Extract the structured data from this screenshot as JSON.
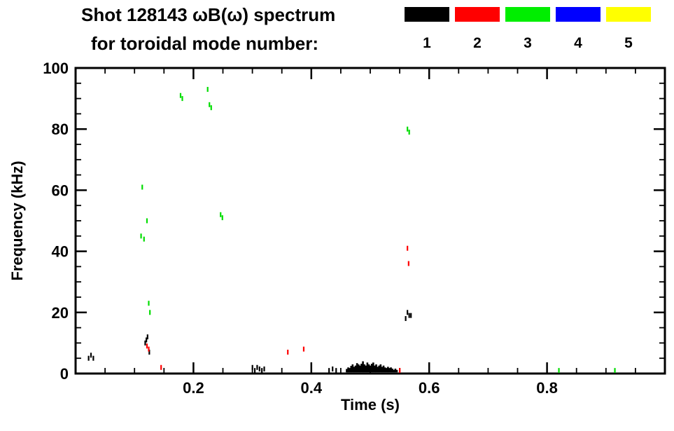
{
  "title": {
    "line1": "Shot 128143 ωB(ω) spectrum",
    "line2": "for toroidal mode number:"
  },
  "legend": {
    "modes": [
      {
        "label": "1",
        "color": "#000000"
      },
      {
        "label": "2",
        "color": "#ff0000"
      },
      {
        "label": "3",
        "color": "#00ee00"
      },
      {
        "label": "4",
        "color": "#0000ff"
      },
      {
        "label": "5",
        "color": "#ffff00"
      }
    ]
  },
  "chart_data": {
    "type": "scatter",
    "title": "Shot 128143 ωB(ω) spectrum for toroidal mode number: 1 2 3 4 5",
    "xlabel": "Time (s)",
    "ylabel": "Frequency (kHz)",
    "xlim": [
      0,
      1.0
    ],
    "ylim": [
      0,
      100
    ],
    "x_major_ticks": [
      0.2,
      0.4,
      0.6,
      0.8
    ],
    "x_minor_step": 0.05,
    "y_major_ticks": [
      0,
      20,
      40,
      60,
      80,
      100
    ],
    "y_minor_step": 5,
    "grid": false,
    "legend_position": "top-right",
    "series": [
      {
        "name": "n=1",
        "color": "#000000",
        "points": [
          [
            0.022,
            5
          ],
          [
            0.026,
            6
          ],
          [
            0.03,
            5
          ],
          [
            0.118,
            10
          ],
          [
            0.12,
            11
          ],
          [
            0.122,
            12
          ],
          [
            0.125,
            7
          ],
          [
            0.3,
            2
          ],
          [
            0.304,
            1
          ],
          [
            0.308,
            2
          ],
          [
            0.312,
            1.5
          ],
          [
            0.316,
            1
          ],
          [
            0.32,
            1.5
          ],
          [
            0.43,
            1
          ],
          [
            0.436,
            1.5
          ],
          [
            0.442,
            1
          ],
          [
            0.56,
            18
          ],
          [
            0.563,
            20
          ],
          [
            0.566,
            19
          ],
          [
            0.569,
            19
          ]
        ],
        "bars": [
          [
            0.46,
            1.5
          ],
          [
            0.4625,
            2
          ],
          [
            0.465,
            1.8
          ],
          [
            0.4675,
            2.5
          ],
          [
            0.47,
            3
          ],
          [
            0.4725,
            2.2
          ],
          [
            0.475,
            2.6
          ],
          [
            0.4775,
            3.4
          ],
          [
            0.48,
            3
          ],
          [
            0.4825,
            2.6
          ],
          [
            0.485,
            3.2
          ],
          [
            0.4875,
            4
          ],
          [
            0.49,
            3
          ],
          [
            0.4925,
            2.6
          ],
          [
            0.495,
            3.6
          ],
          [
            0.4975,
            3
          ],
          [
            0.5,
            2.6
          ],
          [
            0.5025,
            3.2
          ],
          [
            0.505,
            3.6
          ],
          [
            0.5075,
            2.6
          ],
          [
            0.51,
            3
          ],
          [
            0.5125,
            2.2
          ],
          [
            0.515,
            2.6
          ],
          [
            0.5175,
            3
          ],
          [
            0.52,
            2.2
          ],
          [
            0.5225,
            2.6
          ],
          [
            0.525,
            2
          ],
          [
            0.5275,
            1.8
          ],
          [
            0.53,
            2.2
          ],
          [
            0.5325,
            1.8
          ],
          [
            0.535,
            2
          ],
          [
            0.5375,
            1.6
          ],
          [
            0.54,
            1.2
          ],
          [
            0.5425,
            1.6
          ],
          [
            0.545,
            1.2
          ]
        ]
      },
      {
        "name": "n=2",
        "color": "#ff0000",
        "points": [
          [
            0.121,
            9
          ],
          [
            0.124,
            8
          ],
          [
            0.145,
            2
          ],
          [
            0.36,
            7
          ],
          [
            0.387,
            8
          ],
          [
            0.563,
            41
          ],
          [
            0.565,
            36
          ],
          [
            0.55,
            1
          ]
        ],
        "bars": []
      },
      {
        "name": "n=3",
        "color": "#00dd00",
        "points": [
          [
            0.113,
            61
          ],
          [
            0.111,
            45
          ],
          [
            0.116,
            44
          ],
          [
            0.121,
            50
          ],
          [
            0.124,
            23
          ],
          [
            0.126,
            20
          ],
          [
            0.178,
            91
          ],
          [
            0.181,
            90
          ],
          [
            0.224,
            93
          ],
          [
            0.227,
            88
          ],
          [
            0.23,
            87
          ],
          [
            0.246,
            52
          ],
          [
            0.249,
            51
          ],
          [
            0.563,
            80
          ],
          [
            0.566,
            79
          ],
          [
            0.82,
            1
          ],
          [
            0.915,
            1
          ]
        ],
        "bars": []
      },
      {
        "name": "n=4",
        "color": "#0000ff",
        "points": [],
        "bars": []
      },
      {
        "name": "n=5",
        "color": "#ffff00",
        "points": [],
        "bars": []
      }
    ]
  }
}
